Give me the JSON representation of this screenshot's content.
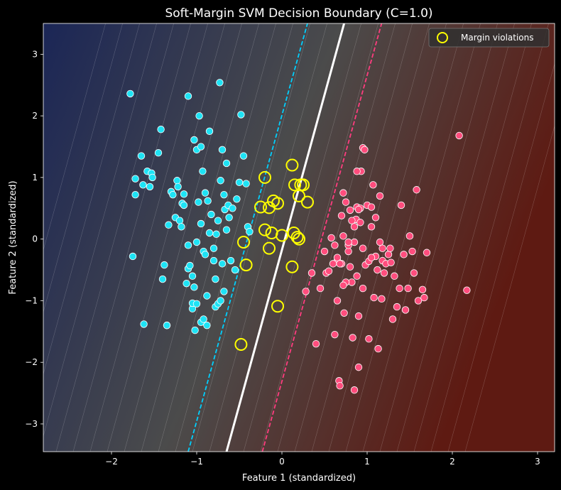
{
  "chart_data": {
    "type": "scatter",
    "title": "Soft-Margin SVM Decision Boundary (C=1.0)",
    "xlabel": "Feature 1 (standardized)",
    "ylabel": "Feature 2 (standardized)",
    "xlim": [
      -2.8,
      3.2
    ],
    "ylim": [
      -3.45,
      3.5
    ],
    "xticks": [
      "−2",
      "−1",
      "0",
      "1",
      "2",
      "3"
    ],
    "xtick_values": [
      -2,
      -1,
      0,
      1,
      2,
      3
    ],
    "yticks": [
      "−3",
      "−2",
      "−1",
      "0",
      "1",
      "2",
      "3"
    ],
    "ytick_values": [
      -3,
      -2,
      -1,
      0,
      1,
      2,
      3
    ],
    "grid": false,
    "legend": {
      "placement": "top-right",
      "entries": [
        "Margin violations"
      ]
    },
    "boundary": {
      "decision": [
        [
          -0.65,
          -3.45
        ],
        [
          0.73,
          3.5
        ]
      ],
      "margin_class_a": [
        [
          -1.1,
          -3.45
        ],
        [
          0.3,
          3.5
        ]
      ],
      "margin_class_b": [
        [
          -0.23,
          -3.45
        ],
        [
          1.17,
          3.5
        ]
      ]
    },
    "colors": {
      "class_a": "#1ee3f5",
      "class_b": "#ff4d7d",
      "violation": "#ffff00",
      "decision": "#ffffff",
      "margin_a": "#00d0ff",
      "margin_b": "#ff3d7f",
      "bg_left": "#1b2656",
      "bg_mid": "#4b4b4b",
      "bg_right": "#5e1a12"
    },
    "series": [
      {
        "class": "a",
        "x": [
          -1.78,
          -1.75,
          -1.72,
          -1.72,
          -1.65,
          -1.63,
          -1.62,
          -1.58,
          -1.55,
          -1.53,
          -1.52,
          -1.42,
          -1.4,
          -1.38,
          -1.35,
          -1.33,
          -1.3,
          -1.28,
          -1.25,
          -1.23,
          -1.22,
          -1.2,
          -1.18,
          -1.17,
          -1.15,
          -1.12,
          -1.1,
          -1.1,
          -1.08,
          -1.05,
          -1.05,
          -1.03,
          -1.03,
          -1.0,
          -1.0,
          -0.98,
          -0.97,
          -0.95,
          -0.93,
          -0.92,
          -0.9,
          -0.88,
          -0.87,
          -0.85,
          -0.83,
          -0.8,
          -0.78,
          -0.77,
          -0.75,
          -0.73,
          -0.72,
          -0.7,
          -0.68,
          -0.67,
          -0.65,
          -0.63,
          -0.62,
          -0.6,
          -0.58,
          -0.55,
          -0.53,
          -0.5,
          -0.48,
          -0.45,
          -0.42,
          -0.4,
          -0.38,
          -1.45,
          -1.35,
          -1.15,
          -1.1,
          -1.0,
          -0.95,
          -0.9,
          -0.85,
          -0.8,
          -0.75,
          -0.7,
          -0.65,
          -0.95,
          -1.02,
          -1.05,
          -0.88,
          -0.92,
          -0.78,
          -0.72,
          -0.68
        ],
        "y": [
          2.36,
          -0.28,
          0.72,
          0.98,
          1.35,
          0.88,
          -1.38,
          1.1,
          0.85,
          1.07,
          1.0,
          1.78,
          -0.65,
          -0.42,
          -1.4,
          0.23,
          0.77,
          0.72,
          0.35,
          0.95,
          0.85,
          0.3,
          0.2,
          0.58,
          0.73,
          -0.72,
          2.32,
          -0.48,
          -0.43,
          -1.13,
          -1.04,
          1.61,
          -0.78,
          -1.05,
          1.45,
          0.6,
          2.0,
          1.5,
          1.1,
          -0.2,
          0.75,
          -0.92,
          0.62,
          1.75,
          0.4,
          -0.35,
          -1.1,
          0.08,
          -1.05,
          2.54,
          0.95,
          1.45,
          0.72,
          0.48,
          1.23,
          0.55,
          0.35,
          -0.35,
          0.5,
          -0.5,
          0.65,
          0.92,
          2.02,
          1.35,
          0.9,
          0.2,
          0.12,
          1.4,
          -1.4,
          0.55,
          -0.1,
          -0.05,
          0.25,
          -0.25,
          0.1,
          -0.15,
          0.3,
          -0.4,
          0.15,
          -1.35,
          -1.48,
          -0.6,
          -1.4,
          -1.3,
          -0.65,
          -1.0,
          -0.85
        ]
      },
      {
        "class": "b",
        "x": [
          2.08,
          2.17,
          0.58,
          0.62,
          0.65,
          0.67,
          0.68,
          0.7,
          0.72,
          0.72,
          0.73,
          0.75,
          0.78,
          0.8,
          0.8,
          0.82,
          0.83,
          0.85,
          0.87,
          0.88,
          0.9,
          0.92,
          0.92,
          0.93,
          0.95,
          0.95,
          0.97,
          0.98,
          1.0,
          1.02,
          1.02,
          1.05,
          1.07,
          1.08,
          1.1,
          1.12,
          1.13,
          1.15,
          1.17,
          1.18,
          1.2,
          1.22,
          1.25,
          1.27,
          1.28,
          1.3,
          1.32,
          1.35,
          1.38,
          1.4,
          1.43,
          1.45,
          1.48,
          1.5,
          1.53,
          1.55,
          1.58,
          1.6,
          1.65,
          1.67,
          1.7,
          0.28,
          0.35,
          0.4,
          0.45,
          0.5,
          0.52,
          0.55,
          0.6,
          0.65,
          0.7,
          0.75,
          0.78,
          0.82,
          0.85,
          0.88,
          0.9,
          0.95,
          1.05,
          1.1,
          1.15,
          0.62,
          0.65,
          0.85,
          0.9,
          0.88,
          0.72,
          0.68,
          0.78,
          1.05,
          1.18
        ],
        "y": [
          1.68,
          -0.83,
          0.02,
          -0.1,
          -0.35,
          -2.3,
          -2.38,
          0.38,
          0.75,
          0.05,
          -1.2,
          0.6,
          -0.2,
          -0.45,
          0.47,
          -0.7,
          -1.6,
          -0.05,
          0.32,
          0.52,
          -1.25,
          0.27,
          0.5,
          1.1,
          1.48,
          -0.8,
          1.45,
          -0.42,
          0.55,
          -1.62,
          -0.36,
          0.52,
          0.88,
          -0.95,
          -0.28,
          -0.5,
          -1.78,
          0.7,
          -0.97,
          -0.35,
          -0.55,
          -0.4,
          -0.25,
          -0.15,
          -0.38,
          -1.3,
          -0.6,
          -1.1,
          -0.8,
          0.55,
          -0.25,
          -1.15,
          -0.8,
          0.05,
          -0.2,
          -0.55,
          0.8,
          -1.0,
          -0.82,
          -0.95,
          -0.22,
          -0.85,
          -0.55,
          -1.7,
          -0.8,
          -0.2,
          -0.55,
          -0.52,
          -0.4,
          -0.3,
          -0.4,
          -0.7,
          -0.1,
          0.3,
          0.2,
          1.1,
          0.48,
          -0.15,
          0.2,
          0.35,
          -0.05,
          -1.55,
          -1.0,
          -2.45,
          -2.08,
          -0.6,
          -0.75,
          -0.4,
          -0.05,
          -0.3,
          -0.15
        ]
      },
      {
        "class": "violation",
        "x": [
          -0.2,
          -0.15,
          -0.1,
          -0.05,
          -0.25,
          -0.2,
          -0.12,
          -0.15,
          -0.45,
          -0.42,
          -0.48,
          -0.05,
          0.12,
          0.15,
          0.2,
          0.25,
          0.2,
          0.18,
          0.3,
          0.12,
          0.14,
          0.22,
          0.0
        ],
        "y": [
          1.0,
          0.51,
          0.62,
          0.58,
          0.52,
          0.15,
          0.1,
          -0.15,
          -0.05,
          -0.42,
          -1.71,
          -1.09,
          1.2,
          0.88,
          0.7,
          0.88,
          0.0,
          0.03,
          0.6,
          -0.45,
          0.1,
          0.88,
          0.06
        ]
      }
    ]
  }
}
